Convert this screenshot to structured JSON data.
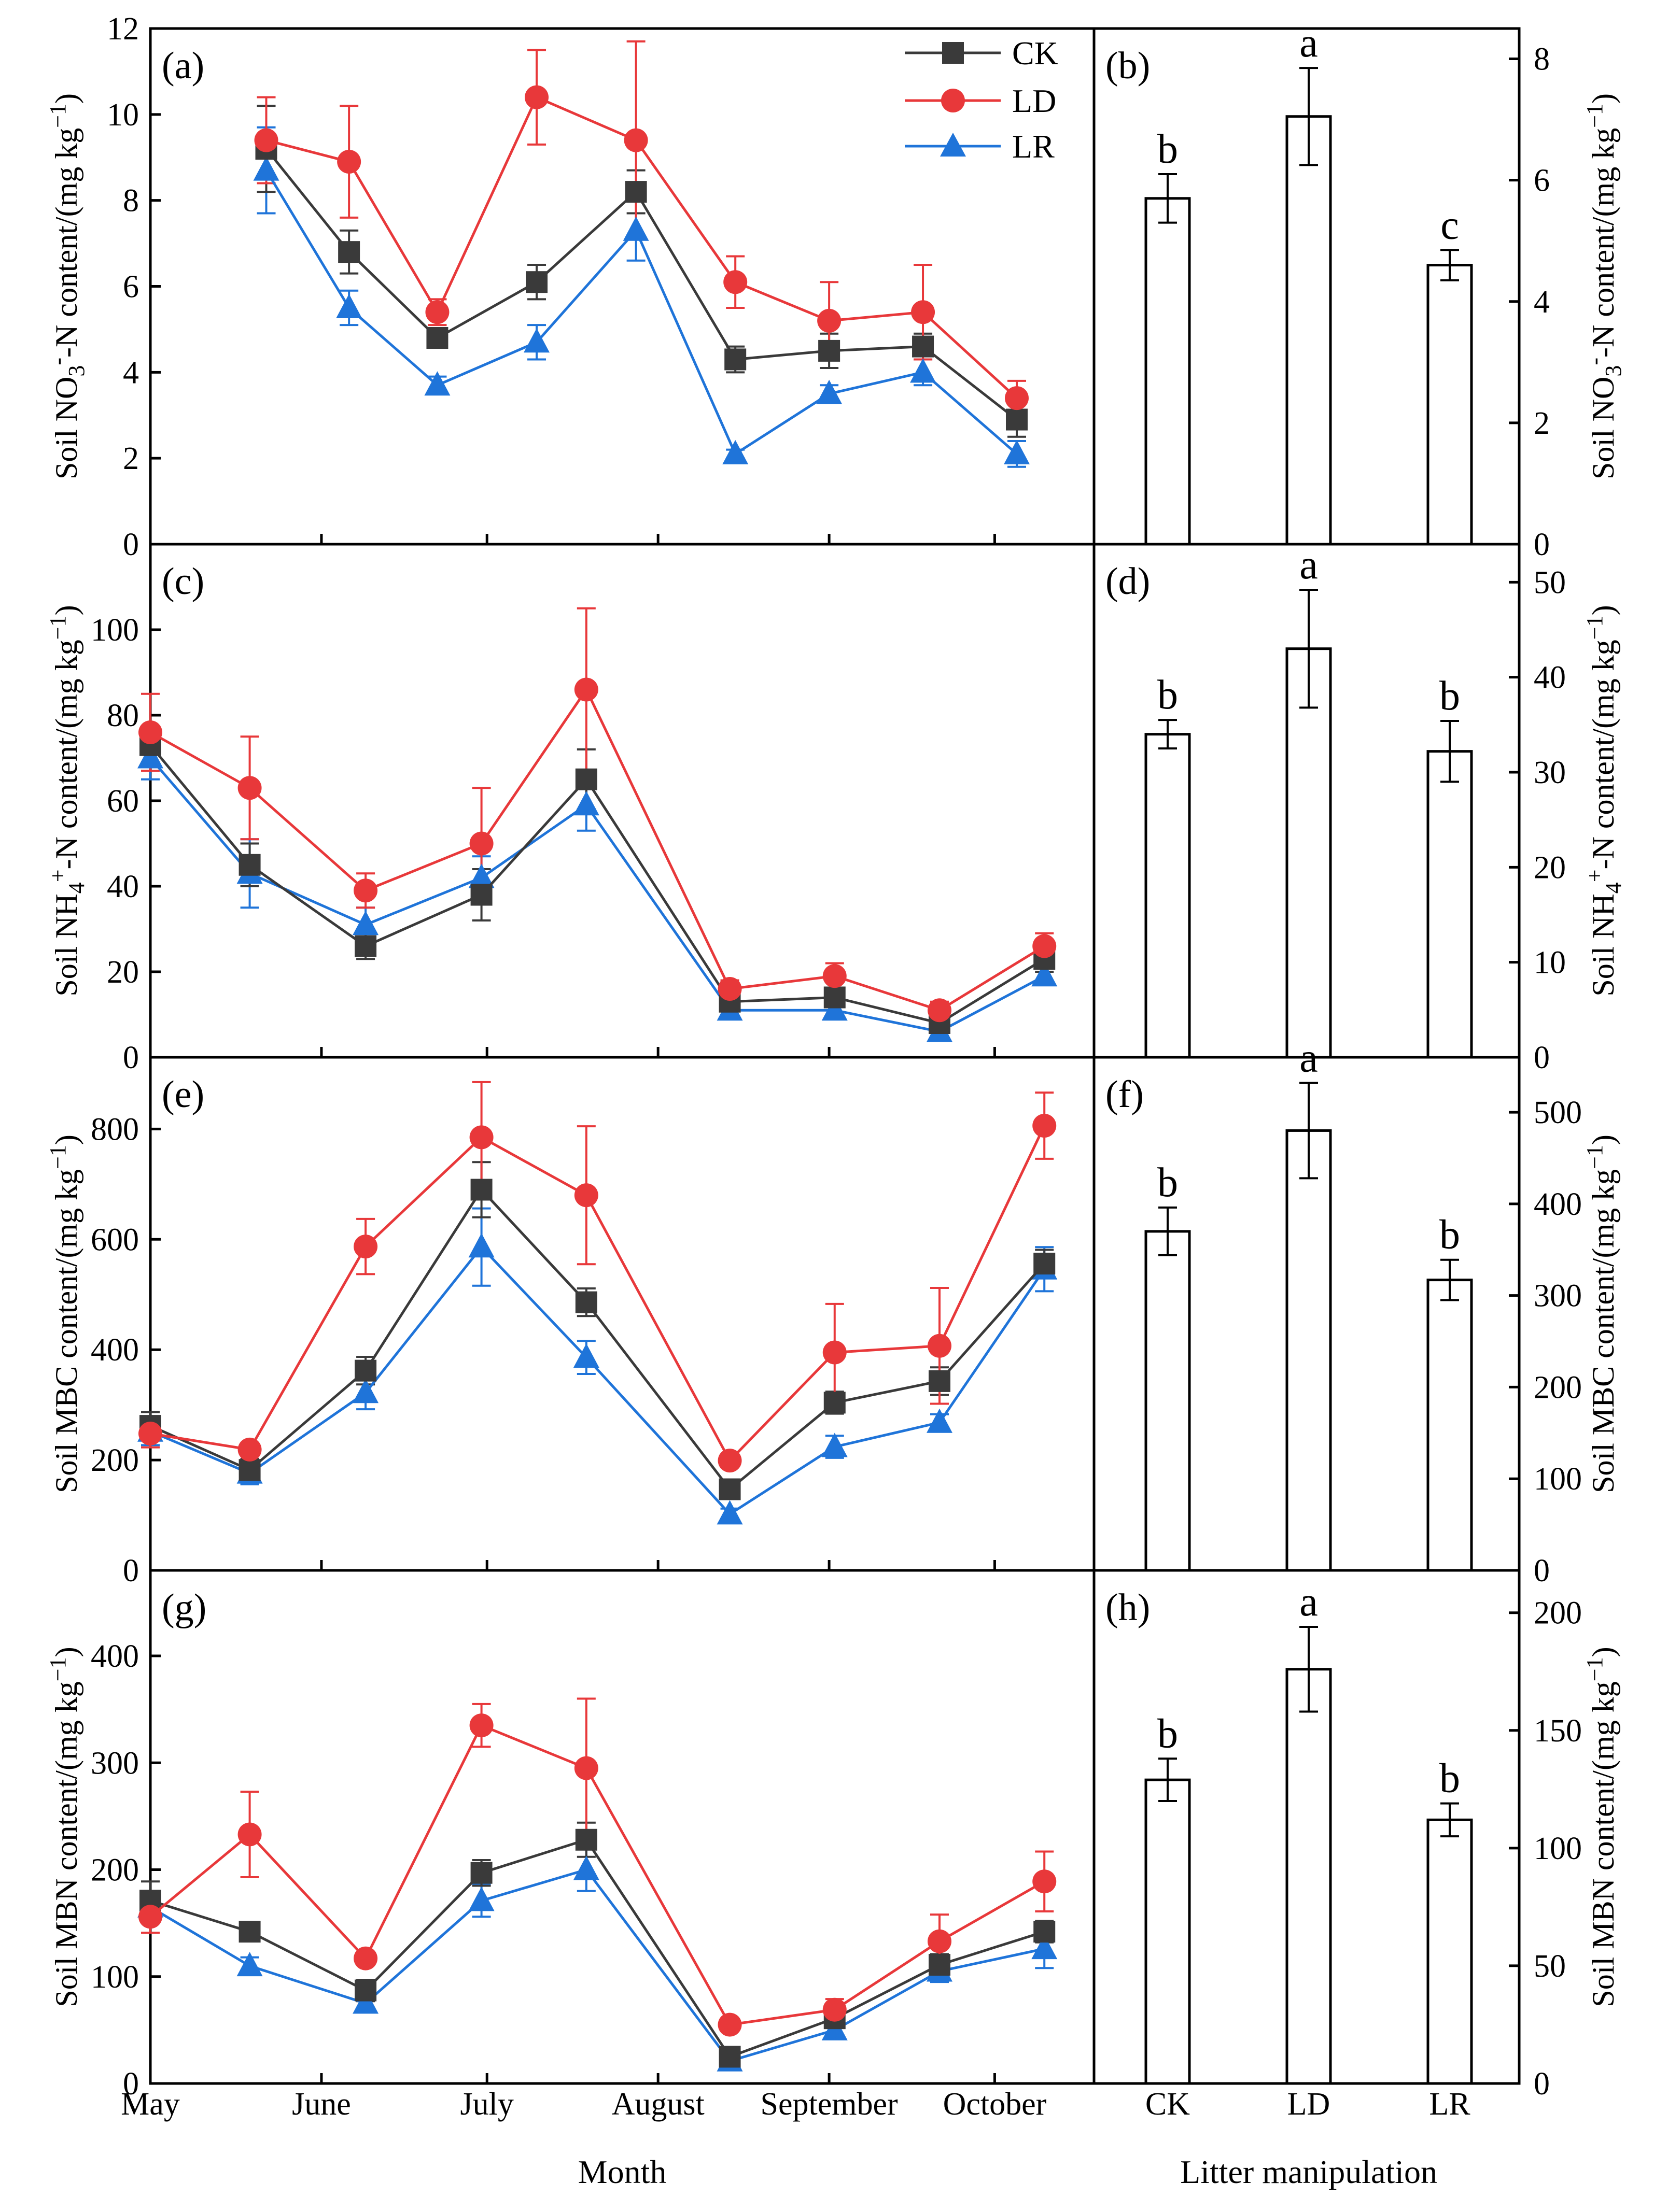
{
  "colors": {
    "CK": "#3a3a3a",
    "LD": "#e8383a",
    "LR": "#1f74d9",
    "axis": "#000000",
    "bar_fill": "#ffffff"
  },
  "legend": [
    {
      "key": "CK",
      "label": "CK",
      "marker": "square"
    },
    {
      "key": "LD",
      "label": "LD",
      "marker": "circle"
    },
    {
      "key": "LR",
      "label": "LR",
      "marker": "triangle"
    }
  ],
  "x_axis": {
    "month_ticks": [
      "May",
      "June",
      "July",
      "August",
      "September",
      "October"
    ],
    "month_tick_positions": [
      1,
      32,
      62,
      93,
      124,
      154
    ],
    "month_range": [
      1,
      172
    ],
    "month_title": "Month",
    "treatment_ticks": [
      "CK",
      "LD",
      "LR"
    ],
    "treatment_title": "Litter manipulation"
  },
  "chart_data": [
    {
      "id": "a",
      "panel_label": "(a)",
      "type": "line",
      "ylabel": "Soil NO3--N content/(mg kg−1)",
      "ylim": [
        0,
        12
      ],
      "yticks": [
        0,
        2,
        4,
        6,
        8,
        10,
        12
      ],
      "x_day": [
        22,
        37,
        53,
        71,
        89,
        107,
        124,
        141,
        158
      ],
      "series": [
        {
          "name": "CK",
          "values": [
            9.2,
            6.8,
            4.8,
            6.1,
            8.2,
            4.3,
            4.5,
            4.6,
            2.9
          ],
          "errors": [
            1.0,
            0.5,
            0.2,
            0.4,
            0.5,
            0.3,
            0.4,
            0.3,
            0.4
          ]
        },
        {
          "name": "LD",
          "values": [
            9.4,
            8.9,
            5.4,
            10.4,
            9.4,
            6.1,
            5.2,
            5.4,
            3.4
          ],
          "errors": [
            1.0,
            1.3,
            0.3,
            1.1,
            2.3,
            0.6,
            0.9,
            1.1,
            0.4
          ]
        },
        {
          "name": "LR",
          "values": [
            8.7,
            5.5,
            3.7,
            4.7,
            7.3,
            2.1,
            3.5,
            4.0,
            2.1
          ],
          "errors": [
            1.0,
            0.4,
            0.2,
            0.4,
            0.7,
            0.1,
            0.2,
            0.3,
            0.3
          ]
        }
      ]
    },
    {
      "id": "b",
      "panel_label": "(b)",
      "type": "bar",
      "ylabel": "Soil NO3--N content/(mg kg−1)",
      "ylim": [
        0,
        8.5
      ],
      "yticks": [
        0,
        2,
        4,
        6,
        8
      ],
      "categories": [
        "CK",
        "LD",
        "LR"
      ],
      "values": [
        5.7,
        7.05,
        4.6
      ],
      "errors": [
        0.4,
        0.8,
        0.25
      ],
      "letters": [
        "b",
        "a",
        "c"
      ]
    },
    {
      "id": "c",
      "panel_label": "(c)",
      "type": "line",
      "ylabel": "Soil NH4+-N content/(mg kg−1)",
      "ylim": [
        0,
        120
      ],
      "yticks": [
        0,
        20,
        40,
        60,
        80,
        100
      ],
      "x_day": [
        1,
        19,
        40,
        61,
        80,
        106,
        125,
        144,
        163
      ],
      "series": [
        {
          "name": "CK",
          "values": [
            73,
            45,
            26,
            38,
            65,
            13,
            14,
            8,
            23
          ],
          "errors": [
            4,
            5,
            3,
            6,
            7,
            2,
            2,
            2,
            3
          ]
        },
        {
          "name": "LD",
          "values": [
            76,
            63,
            39,
            50,
            86,
            16,
            19,
            11,
            26
          ],
          "errors": [
            9,
            12,
            4,
            13,
            19,
            2,
            3,
            2,
            3
          ]
        },
        {
          "name": "LR",
          "values": [
            70,
            43,
            31,
            42,
            59,
            11,
            11,
            6,
            19
          ],
          "errors": [
            5,
            8,
            4,
            5,
            6,
            2,
            2,
            1,
            2
          ]
        }
      ]
    },
    {
      "id": "d",
      "panel_label": "(d)",
      "type": "bar",
      "ylabel": "Soil NH4+-N content/(mg kg−1)",
      "ylim": [
        0,
        54
      ],
      "yticks": [
        0,
        10,
        20,
        30,
        40,
        50
      ],
      "categories": [
        "CK",
        "LD",
        "LR"
      ],
      "values": [
        34,
        43,
        32.2
      ],
      "errors": [
        1.5,
        6.2,
        3.2
      ],
      "letters": [
        "b",
        "a",
        "b"
      ]
    },
    {
      "id": "e",
      "panel_label": "(e)",
      "type": "line",
      "ylabel": "Soil MBC content/(mg kg−1)",
      "ylim": [
        0,
        930
      ],
      "yticks": [
        0,
        200,
        400,
        600,
        800
      ],
      "x_day": [
        1,
        19,
        40,
        61,
        80,
        106,
        125,
        144,
        163
      ],
      "series": [
        {
          "name": "CK",
          "values": [
            262,
            182,
            362,
            690,
            486,
            147,
            304,
            343,
            556
          ],
          "errors": [
            25,
            20,
            25,
            50,
            25,
            15,
            20,
            25,
            25
          ]
        },
        {
          "name": "LD",
          "values": [
            248,
            219,
            587,
            785,
            680,
            199,
            395,
            407,
            806
          ],
          "errors": [
            25,
            10,
            50,
            100,
            125,
            10,
            88,
            105,
            60
          ]
        },
        {
          "name": "LR",
          "values": [
            252,
            176,
            322,
            586,
            386,
            102,
            224,
            268,
            546
          ],
          "errors": [
            25,
            20,
            30,
            70,
            30,
            10,
            20,
            15,
            40
          ]
        }
      ]
    },
    {
      "id": "f",
      "panel_label": "(f)",
      "type": "bar",
      "ylabel": "Soil MBC content/(mg kg−1)",
      "ylim": [
        0,
        560
      ],
      "yticks": [
        0,
        100,
        200,
        300,
        400,
        500
      ],
      "categories": [
        "CK",
        "LD",
        "LR"
      ],
      "values": [
        370,
        480,
        317
      ],
      "errors": [
        26,
        52,
        22
      ],
      "letters": [
        "b",
        "a",
        "b"
      ]
    },
    {
      "id": "g",
      "panel_label": "(g)",
      "type": "line",
      "ylabel": "Soil MBN content/(mg kg−1)",
      "ylim": [
        0,
        480
      ],
      "yticks": [
        0,
        100,
        200,
        300,
        400
      ],
      "x_day": [
        1,
        19,
        40,
        61,
        80,
        106,
        125,
        144,
        163
      ],
      "series": [
        {
          "name": "CK",
          "values": [
            171,
            142,
            87,
            197,
            228,
            25,
            61,
            111,
            142
          ],
          "errors": [
            18,
            8,
            10,
            12,
            16,
            5,
            8,
            10,
            10
          ]
        },
        {
          "name": "LD",
          "values": [
            156,
            233,
            117,
            335,
            295,
            55,
            69,
            133,
            189
          ],
          "errors": [
            15,
            40,
            5,
            20,
            65,
            5,
            10,
            25,
            28
          ]
        },
        {
          "name": "LR",
          "values": [
            165,
            110,
            75,
            171,
            200,
            21,
            50,
            105,
            126
          ],
          "errors": [
            10,
            8,
            8,
            15,
            20,
            4,
            7,
            10,
            18
          ]
        }
      ]
    },
    {
      "id": "h",
      "panel_label": "(h)",
      "type": "bar",
      "ylabel": "Soil MBN content/(mg kg−1)",
      "ylim": [
        0,
        218
      ],
      "yticks": [
        0,
        50,
        100,
        150,
        200
      ],
      "categories": [
        "CK",
        "LD",
        "LR"
      ],
      "values": [
        129,
        176,
        112
      ],
      "errors": [
        9,
        18,
        7
      ],
      "letters": [
        "b",
        "a",
        "b"
      ]
    }
  ]
}
